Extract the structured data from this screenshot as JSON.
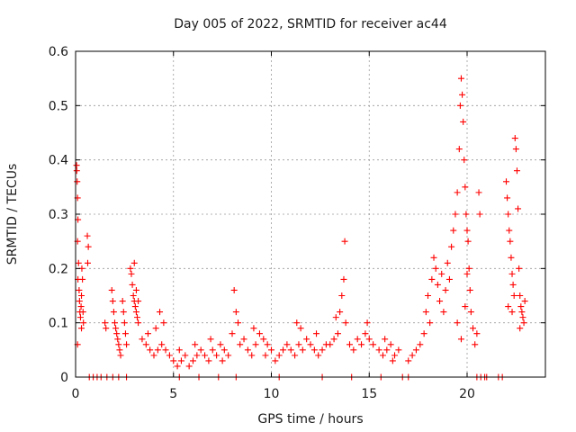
{
  "chart_data": {
    "type": "scatter",
    "title": "Day 005 of 2022, SRMTID for receiver ac44",
    "xlabel": "GPS time / hours",
    "ylabel": "SRMTID / TECUs",
    "xlim": [
      0,
      24
    ],
    "ylim": [
      0,
      0.6
    ],
    "xticks": [
      0,
      5,
      10,
      15,
      20
    ],
    "xtick_labels": [
      "0",
      "5",
      "10",
      "15",
      "20"
    ],
    "yticks": [
      0,
      0.1,
      0.2,
      0.3,
      0.4,
      0.5,
      0.6
    ],
    "ytick_labels": [
      "0",
      "0.1",
      "0.2",
      "0.3",
      "0.4",
      "0.5",
      "0.6"
    ],
    "grid": true,
    "marker": "+",
    "color": "#ff0000",
    "series": [
      {
        "name": "SRMTID",
        "points": [
          [
            0.05,
            0.39
          ],
          [
            0.06,
            0.38
          ],
          [
            0.08,
            0.36
          ],
          [
            0.1,
            0.33
          ],
          [
            0.12,
            0.29
          ],
          [
            0.1,
            0.25
          ],
          [
            0.15,
            0.21
          ],
          [
            0.12,
            0.18
          ],
          [
            0.18,
            0.16
          ],
          [
            0.2,
            0.14
          ],
          [
            0.22,
            0.12
          ],
          [
            0.25,
            0.11
          ],
          [
            0.28,
            0.13
          ],
          [
            0.3,
            0.15
          ],
          [
            0.32,
            0.2
          ],
          [
            0.35,
            0.18
          ],
          [
            0.1,
            0.06
          ],
          [
            0.38,
            0.12
          ],
          [
            0.4,
            0.1
          ],
          [
            0.3,
            0.09
          ],
          [
            0.6,
            0.26
          ],
          [
            0.65,
            0.24
          ],
          [
            0.62,
            0.21
          ],
          [
            1.5,
            0.1
          ],
          [
            1.55,
            0.09
          ],
          [
            1.85,
            0.16
          ],
          [
            1.9,
            0.14
          ],
          [
            1.95,
            0.12
          ],
          [
            2.0,
            0.1
          ],
          [
            2.05,
            0.09
          ],
          [
            2.1,
            0.08
          ],
          [
            2.15,
            0.07
          ],
          [
            2.2,
            0.06
          ],
          [
            2.25,
            0.05
          ],
          [
            2.3,
            0.04
          ],
          [
            2.4,
            0.14
          ],
          [
            2.45,
            0.12
          ],
          [
            2.5,
            0.1
          ],
          [
            2.55,
            0.08
          ],
          [
            2.6,
            0.06
          ],
          [
            2.8,
            0.2
          ],
          [
            2.85,
            0.19
          ],
          [
            2.9,
            0.17
          ],
          [
            2.95,
            0.15
          ],
          [
            3.0,
            0.14
          ],
          [
            3.05,
            0.13
          ],
          [
            3.1,
            0.12
          ],
          [
            3.15,
            0.11
          ],
          [
            3.2,
            0.1
          ],
          [
            3.0,
            0.21
          ],
          [
            3.1,
            0.16
          ],
          [
            3.2,
            0.14
          ],
          [
            3.4,
            0.07
          ],
          [
            3.6,
            0.06
          ],
          [
            3.8,
            0.05
          ],
          [
            4.0,
            0.04
          ],
          [
            4.2,
            0.05
          ],
          [
            4.4,
            0.06
          ],
          [
            4.6,
            0.05
          ],
          [
            4.8,
            0.04
          ],
          [
            4.3,
            0.12
          ],
          [
            4.5,
            0.1
          ],
          [
            3.7,
            0.08
          ],
          [
            4.1,
            0.09
          ],
          [
            5.0,
            0.03
          ],
          [
            5.2,
            0.02
          ],
          [
            5.4,
            0.03
          ],
          [
            5.6,
            0.04
          ],
          [
            5.8,
            0.02
          ],
          [
            6.0,
            0.03
          ],
          [
            6.2,
            0.04
          ],
          [
            6.4,
            0.05
          ],
          [
            6.6,
            0.04
          ],
          [
            6.8,
            0.03
          ],
          [
            7.0,
            0.05
          ],
          [
            7.2,
            0.04
          ],
          [
            7.4,
            0.06
          ],
          [
            7.6,
            0.05
          ],
          [
            7.8,
            0.04
          ],
          [
            5.3,
            0.05
          ],
          [
            6.1,
            0.06
          ],
          [
            6.9,
            0.07
          ],
          [
            7.5,
            0.03
          ],
          [
            8.0,
            0.08
          ],
          [
            8.1,
            0.16
          ],
          [
            8.2,
            0.12
          ],
          [
            8.4,
            0.06
          ],
          [
            8.6,
            0.07
          ],
          [
            8.8,
            0.05
          ],
          [
            9.0,
            0.04
          ],
          [
            9.2,
            0.06
          ],
          [
            9.4,
            0.08
          ],
          [
            9.6,
            0.07
          ],
          [
            9.8,
            0.06
          ],
          [
            10.0,
            0.05
          ],
          [
            8.3,
            0.1
          ],
          [
            9.1,
            0.09
          ],
          [
            9.7,
            0.04
          ],
          [
            10.2,
            0.03
          ],
          [
            10.4,
            0.04
          ],
          [
            10.6,
            0.05
          ],
          [
            10.8,
            0.06
          ],
          [
            11.0,
            0.05
          ],
          [
            11.2,
            0.04
          ],
          [
            11.4,
            0.06
          ],
          [
            11.6,
            0.05
          ],
          [
            11.8,
            0.07
          ],
          [
            12.0,
            0.06
          ],
          [
            12.2,
            0.05
          ],
          [
            12.4,
            0.04
          ],
          [
            12.6,
            0.05
          ],
          [
            12.8,
            0.06
          ],
          [
            11.3,
            0.1
          ],
          [
            11.5,
            0.09
          ],
          [
            12.3,
            0.08
          ],
          [
            13.0,
            0.06
          ],
          [
            13.2,
            0.07
          ],
          [
            13.4,
            0.08
          ],
          [
            13.5,
            0.12
          ],
          [
            13.6,
            0.15
          ],
          [
            13.7,
            0.18
          ],
          [
            13.75,
            0.25
          ],
          [
            13.8,
            0.1
          ],
          [
            14.0,
            0.06
          ],
          [
            14.2,
            0.05
          ],
          [
            14.4,
            0.07
          ],
          [
            14.6,
            0.06
          ],
          [
            14.8,
            0.08
          ],
          [
            15.0,
            0.07
          ],
          [
            15.2,
            0.06
          ],
          [
            13.3,
            0.11
          ],
          [
            14.9,
            0.1
          ],
          [
            15.5,
            0.05
          ],
          [
            15.7,
            0.04
          ],
          [
            15.9,
            0.05
          ],
          [
            16.1,
            0.06
          ],
          [
            16.3,
            0.04
          ],
          [
            16.5,
            0.05
          ],
          [
            15.8,
            0.07
          ],
          [
            16.2,
            0.03
          ],
          [
            17.0,
            0.03
          ],
          [
            17.2,
            0.04
          ],
          [
            17.4,
            0.05
          ],
          [
            17.6,
            0.06
          ],
          [
            17.8,
            0.08
          ],
          [
            17.9,
            0.12
          ],
          [
            18.0,
            0.15
          ],
          [
            18.1,
            0.1
          ],
          [
            18.2,
            0.18
          ],
          [
            18.3,
            0.22
          ],
          [
            18.4,
            0.2
          ],
          [
            18.5,
            0.17
          ],
          [
            18.6,
            0.14
          ],
          [
            18.7,
            0.19
          ],
          [
            18.8,
            0.12
          ],
          [
            18.9,
            0.16
          ],
          [
            19.0,
            0.21
          ],
          [
            19.1,
            0.18
          ],
          [
            19.2,
            0.24
          ],
          [
            19.3,
            0.27
          ],
          [
            19.4,
            0.3
          ],
          [
            19.5,
            0.34
          ],
          [
            19.6,
            0.42
          ],
          [
            19.65,
            0.5
          ],
          [
            19.7,
            0.55
          ],
          [
            19.75,
            0.52
          ],
          [
            19.8,
            0.47
          ],
          [
            19.85,
            0.4
          ],
          [
            19.9,
            0.35
          ],
          [
            19.95,
            0.3
          ],
          [
            20.0,
            0.27
          ],
          [
            20.05,
            0.25
          ],
          [
            20.1,
            0.2
          ],
          [
            20.15,
            0.16
          ],
          [
            20.2,
            0.12
          ],
          [
            20.3,
            0.09
          ],
          [
            20.4,
            0.06
          ],
          [
            20.5,
            0.08
          ],
          [
            20.6,
            0.34
          ],
          [
            20.65,
            0.3
          ],
          [
            19.5,
            0.1
          ],
          [
            19.7,
            0.07
          ],
          [
            19.9,
            0.13
          ],
          [
            20.0,
            0.19
          ],
          [
            22.0,
            0.36
          ],
          [
            22.05,
            0.33
          ],
          [
            22.1,
            0.3
          ],
          [
            22.15,
            0.27
          ],
          [
            22.2,
            0.25
          ],
          [
            22.25,
            0.22
          ],
          [
            22.3,
            0.19
          ],
          [
            22.35,
            0.17
          ],
          [
            22.4,
            0.15
          ],
          [
            22.45,
            0.44
          ],
          [
            22.5,
            0.42
          ],
          [
            22.55,
            0.38
          ],
          [
            22.6,
            0.31
          ],
          [
            22.65,
            0.2
          ],
          [
            22.7,
            0.15
          ],
          [
            22.75,
            0.13
          ],
          [
            22.8,
            0.12
          ],
          [
            22.85,
            0.11
          ],
          [
            22.9,
            0.1
          ],
          [
            22.95,
            0.14
          ],
          [
            22.1,
            0.13
          ],
          [
            22.3,
            0.12
          ],
          [
            22.7,
            0.09
          ],
          [
            0.7,
            0.0
          ],
          [
            0.9,
            0.0
          ],
          [
            1.1,
            0.0
          ],
          [
            1.3,
            0.0
          ],
          [
            1.6,
            0.0
          ],
          [
            1.9,
            0.0
          ],
          [
            2.2,
            0.0
          ],
          [
            2.6,
            0.0
          ],
          [
            5.3,
            0.0
          ],
          [
            6.3,
            0.0
          ],
          [
            7.3,
            0.0
          ],
          [
            8.2,
            0.0
          ],
          [
            10.4,
            0.0
          ],
          [
            12.6,
            0.0
          ],
          [
            14.1,
            0.0
          ],
          [
            15.6,
            0.0
          ],
          [
            16.7,
            0.0
          ],
          [
            17.0,
            0.0
          ],
          [
            20.5,
            0.0
          ],
          [
            20.7,
            0.0
          ],
          [
            20.9,
            0.0
          ],
          [
            21.0,
            0.0
          ],
          [
            21.6,
            0.0
          ],
          [
            21.8,
            0.0
          ]
        ]
      }
    ]
  }
}
